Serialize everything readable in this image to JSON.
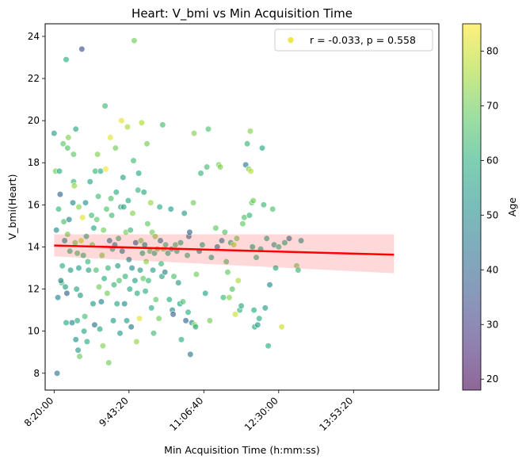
{
  "chart_data": {
    "type": "scatter",
    "title": "Heart: V_bmi vs Min Acquisition Time",
    "xlabel": "Min Acquisition Time (h:mm:ss)",
    "ylabel": "V_bmi(Heart)",
    "x_unit": "seconds since midnight",
    "xlim": [
      29400,
      55700
    ],
    "ylim": [
      7.2,
      24.6
    ],
    "x_ticks": [
      30000,
      35000,
      40000,
      45000,
      50000
    ],
    "x_tick_labels": [
      "8:20:00",
      "9:43:20",
      "11:06:40",
      "12:30:00",
      "13:53:20"
    ],
    "y_ticks": [
      8,
      10,
      12,
      14,
      16,
      18,
      20,
      22,
      24
    ],
    "grid": false,
    "legend": {
      "position": "top-right",
      "label": "r = -0.033, p = 0.558",
      "marker_color": "#ece64a"
    },
    "colorbar": {
      "label": "Age",
      "min": 18,
      "max": 85,
      "ticks": [
        20,
        30,
        40,
        50,
        60,
        70,
        80
      ]
    },
    "regression": {
      "x": [
        30000,
        52700
      ],
      "y": [
        14.07,
        13.63
      ],
      "ci_lower": [
        13.55,
        12.75
      ],
      "ci_upper": [
        14.6,
        14.6
      ],
      "color": "#ff0000"
    },
    "series": [
      {
        "points": [
          [
            30000,
            19.4,
            55
          ],
          [
            30100,
            17.6,
            70
          ],
          [
            30150,
            14.8,
            50
          ],
          [
            30200,
            8.0,
            45
          ],
          [
            30250,
            11.6,
            48
          ],
          [
            30300,
            15.8,
            62
          ],
          [
            30350,
            17.6,
            60
          ],
          [
            30400,
            16.5,
            40
          ],
          [
            30500,
            12.3,
            65
          ],
          [
            30600,
            18.9,
            68
          ],
          [
            30700,
            14.3,
            50
          ],
          [
            30650,
            15.2,
            65
          ],
          [
            30750,
            12.1,
            55
          ],
          [
            30800,
            22.9,
            60
          ],
          [
            30850,
            11.8,
            38
          ],
          [
            30900,
            18.7,
            66
          ],
          [
            30950,
            19.2,
            72
          ],
          [
            31000,
            15.3,
            48
          ],
          [
            31050,
            13.8,
            62
          ],
          [
            31100,
            12.9,
            55
          ],
          [
            30550,
            13.1,
            60
          ],
          [
            30450,
            12.4,
            50
          ],
          [
            30800,
            10.4,
            58
          ],
          [
            30900,
            14.6,
            70
          ],
          [
            31300,
            17.1,
            62
          ],
          [
            31350,
            16.9,
            74
          ],
          [
            31400,
            14.2,
            70
          ],
          [
            31450,
            9.6,
            52
          ],
          [
            31500,
            12.0,
            58
          ],
          [
            31550,
            13.7,
            65
          ],
          [
            31600,
            9.1,
            55
          ],
          [
            31700,
            8.8,
            70
          ],
          [
            31750,
            11.7,
            55
          ],
          [
            31800,
            14.3,
            78
          ],
          [
            31850,
            23.4,
            35
          ],
          [
            31900,
            15.4,
            82
          ],
          [
            31950,
            13.6,
            62
          ],
          [
            32000,
            10.0,
            58
          ],
          [
            32050,
            10.7,
            65
          ],
          [
            32100,
            16.1,
            52
          ],
          [
            32150,
            14.5,
            60
          ],
          [
            32200,
            9.5,
            60
          ],
          [
            32250,
            13.3,
            62
          ],
          [
            32300,
            12.9,
            56
          ],
          [
            31300,
            18.4,
            68
          ],
          [
            31650,
            13.0,
            55
          ],
          [
            31550,
            10.5,
            60
          ],
          [
            31250,
            16.1,
            50
          ],
          [
            31450,
            19.6,
            58
          ],
          [
            31200,
            10.4,
            48
          ],
          [
            31650,
            15.9,
            72
          ],
          [
            32400,
            17.1,
            58
          ],
          [
            32500,
            15.5,
            64
          ],
          [
            32550,
            14.1,
            70
          ],
          [
            32600,
            11.3,
            54
          ],
          [
            32650,
            14.9,
            58
          ],
          [
            32700,
            10.3,
            42
          ],
          [
            32750,
            17.6,
            62
          ],
          [
            32800,
            12.9,
            65
          ],
          [
            32850,
            15.3,
            68
          ],
          [
            32900,
            18.4,
            72
          ],
          [
            32950,
            16.4,
            64
          ],
          [
            33000,
            12.1,
            70
          ],
          [
            33050,
            10.1,
            58
          ],
          [
            33100,
            17.6,
            60
          ],
          [
            33150,
            11.4,
            48
          ],
          [
            33200,
            13.6,
            72
          ],
          [
            33250,
            9.3,
            72
          ],
          [
            33300,
            14.8,
            70
          ],
          [
            33350,
            12.5,
            60
          ],
          [
            33400,
            20.7,
            64
          ],
          [
            33450,
            17.7,
            84
          ],
          [
            33500,
            15.8,
            66
          ],
          [
            33550,
            11.8,
            70
          ],
          [
            33600,
            13.0,
            62
          ],
          [
            33650,
            8.5,
            70
          ],
          [
            33700,
            14.3,
            45
          ],
          [
            33750,
            19.2,
            82
          ],
          [
            33800,
            16.3,
            66
          ],
          [
            33850,
            15.5,
            64
          ],
          [
            33900,
            13.9,
            60
          ],
          [
            33950,
            10.5,
            55
          ],
          [
            34000,
            12.2,
            62
          ],
          [
            34050,
            14.1,
            48
          ],
          [
            34100,
            18.7,
            70
          ],
          [
            34150,
            16.6,
            60
          ],
          [
            34200,
            11.3,
            58
          ],
          [
            34250,
            13.1,
            55
          ],
          [
            34300,
            14.4,
            62
          ],
          [
            34350,
            12.4,
            66
          ],
          [
            34400,
            9.9,
            54
          ],
          [
            34450,
            15.9,
            60
          ],
          [
            34500,
            20.0,
            82
          ],
          [
            34550,
            13.8,
            48
          ],
          [
            34600,
            17.3,
            56
          ],
          [
            34650,
            15.9,
            58
          ],
          [
            34700,
            11.3,
            50
          ],
          [
            34750,
            12.6,
            62
          ],
          [
            34800,
            14.7,
            70
          ],
          [
            34850,
            10.5,
            55
          ],
          [
            34900,
            19.7,
            76
          ],
          [
            34950,
            16.2,
            60
          ],
          [
            35000,
            13.4,
            48
          ],
          [
            35050,
            12.0,
            58
          ],
          [
            35100,
            14.8,
            62
          ],
          [
            35150,
            10.2,
            45
          ],
          [
            35200,
            13.0,
            50
          ],
          [
            35250,
            15.6,
            72
          ],
          [
            35300,
            18.1,
            64
          ],
          [
            35350,
            23.8,
            70
          ],
          [
            35400,
            12.4,
            56
          ],
          [
            35450,
            14.2,
            40
          ],
          [
            35500,
            9.5,
            74
          ],
          [
            35550,
            11.8,
            60
          ],
          [
            35600,
            16.7,
            62
          ],
          [
            35650,
            17.5,
            58
          ],
          [
            35700,
            10.6,
            82
          ],
          [
            35750,
            12.9,
            55
          ],
          [
            35800,
            14.3,
            70
          ],
          [
            35850,
            19.9,
            76
          ],
          [
            35900,
            13.7,
            60
          ],
          [
            35950,
            12.5,
            68
          ],
          [
            36000,
            16.6,
            58
          ],
          [
            36050,
            14.1,
            48
          ],
          [
            36100,
            11.9,
            60
          ],
          [
            36150,
            13.3,
            72
          ],
          [
            36200,
            18.9,
            70
          ],
          [
            36250,
            15.1,
            68
          ],
          [
            36300,
            12.4,
            62
          ],
          [
            36400,
            13.8,
            66
          ],
          [
            36450,
            16.1,
            74
          ],
          [
            36500,
            11.1,
            60
          ],
          [
            36550,
            14.7,
            70
          ],
          [
            36600,
            12.9,
            56
          ],
          [
            36650,
            9.9,
            64
          ],
          [
            36700,
            13.7,
            60
          ],
          [
            36750,
            14.5,
            72
          ],
          [
            36800,
            11.5,
            68
          ],
          [
            36900,
            13.9,
            70
          ],
          [
            37000,
            10.6,
            70
          ],
          [
            37050,
            15.9,
            60
          ],
          [
            37100,
            14.3,
            45
          ],
          [
            37150,
            13.2,
            62
          ],
          [
            37200,
            12.6,
            58
          ],
          [
            37250,
            19.8,
            64
          ],
          [
            37300,
            13.9,
            70
          ],
          [
            37400,
            12.8,
            48
          ],
          [
            37450,
            14.1,
            62
          ],
          [
            37600,
            13.7,
            60
          ],
          [
            37700,
            11.5,
            60
          ],
          [
            37800,
            15.8,
            55
          ],
          [
            37850,
            13.9,
            58
          ],
          [
            37900,
            11.0,
            50
          ],
          [
            37950,
            10.8,
            40
          ],
          [
            38000,
            12.6,
            66
          ],
          [
            38100,
            14.1,
            64
          ],
          [
            38200,
            13.8,
            60
          ],
          [
            38300,
            12.3,
            55
          ],
          [
            38400,
            11.3,
            56
          ],
          [
            38450,
            14.2,
            60
          ],
          [
            38500,
            9.6,
            60
          ],
          [
            38600,
            11.4,
            66
          ],
          [
            38700,
            15.6,
            55
          ],
          [
            38800,
            10.5,
            40
          ],
          [
            38900,
            13.6,
            62
          ],
          [
            38950,
            10.9,
            60
          ],
          [
            39000,
            14.5,
            45
          ],
          [
            39050,
            14.7,
            40
          ],
          [
            39100,
            8.9,
            45
          ],
          [
            39200,
            10.4,
            50
          ],
          [
            39300,
            16.1,
            70
          ],
          [
            39350,
            19.4,
            72
          ],
          [
            39400,
            10.3,
            74
          ],
          [
            39450,
            10.2,
            58
          ],
          [
            39500,
            12.7,
            70
          ],
          [
            39700,
            13.8,
            48
          ],
          [
            39800,
            17.5,
            62
          ],
          [
            39900,
            14.1,
            60
          ],
          [
            40100,
            11.8,
            56
          ],
          [
            40200,
            17.8,
            64
          ],
          [
            40300,
            19.6,
            66
          ],
          [
            40400,
            10.5,
            70
          ],
          [
            40500,
            13.5,
            58
          ],
          [
            40800,
            14.9,
            68
          ],
          [
            40900,
            14.0,
            45
          ],
          [
            41000,
            17.9,
            70
          ],
          [
            41100,
            17.8,
            72
          ],
          [
            41200,
            14.3,
            48
          ],
          [
            41300,
            11.6,
            62
          ],
          [
            41400,
            14.7,
            66
          ],
          [
            41500,
            13.3,
            66
          ],
          [
            41600,
            12.8,
            68
          ],
          [
            41700,
            11.6,
            72
          ],
          [
            41800,
            14.2,
            60
          ],
          [
            41900,
            12.0,
            66
          ],
          [
            42000,
            14.1,
            76
          ],
          [
            42100,
            10.8,
            80
          ],
          [
            42200,
            14.4,
            70
          ],
          [
            42300,
            12.4,
            76
          ],
          [
            42400,
            11.0,
            62
          ],
          [
            42500,
            11.2,
            58
          ],
          [
            42600,
            15.1,
            68
          ],
          [
            42700,
            15.4,
            66
          ],
          [
            42800,
            17.9,
            45
          ],
          [
            42900,
            18.9,
            62
          ],
          [
            43000,
            17.7,
            70
          ],
          [
            43050,
            15.5,
            62
          ],
          [
            43100,
            19.5,
            72
          ],
          [
            43150,
            17.6,
            78
          ],
          [
            43200,
            16.1,
            68
          ],
          [
            43250,
            14.0,
            58
          ],
          [
            43300,
            16.2,
            70
          ],
          [
            43350,
            11.0,
            60
          ],
          [
            43400,
            10.2,
            58
          ],
          [
            43500,
            13.5,
            62
          ],
          [
            43600,
            10.3,
            55
          ],
          [
            43700,
            10.6,
            60
          ],
          [
            43800,
            13.9,
            60
          ],
          [
            43900,
            18.7,
            58
          ],
          [
            44000,
            16.0,
            62
          ],
          [
            44100,
            11.1,
            55
          ],
          [
            44200,
            14.4,
            60
          ],
          [
            44300,
            9.3,
            60
          ],
          [
            44400,
            12.2,
            50
          ],
          [
            44600,
            15.8,
            66
          ],
          [
            44700,
            14.1,
            56
          ],
          [
            44800,
            13.0,
            58
          ],
          [
            45000,
            14.0,
            62
          ],
          [
            45200,
            10.2,
            80
          ],
          [
            45400,
            14.2,
            60
          ],
          [
            45700,
            14.4,
            45
          ],
          [
            46200,
            13.1,
            70
          ],
          [
            46300,
            12.9,
            62
          ],
          [
            46500,
            14.3,
            55
          ]
        ]
      }
    ]
  }
}
